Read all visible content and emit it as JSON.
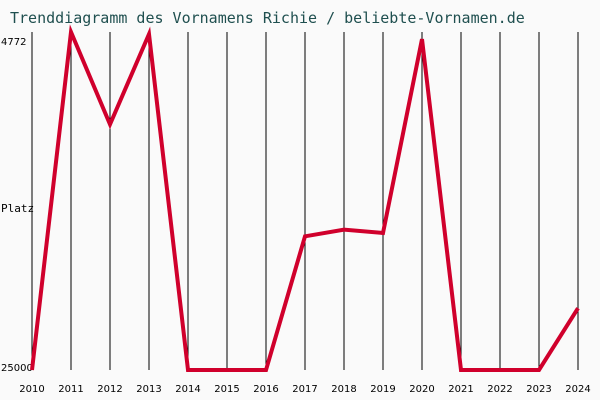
{
  "chart_data": {
    "type": "line",
    "title": "Trenddiagramm des Vornamens Richie / beliebte-Vornamen.de",
    "ylabel": "Platz",
    "xlabel": "",
    "y_axis_inverted": true,
    "ylim": [
      25000,
      4772
    ],
    "y_tick_labels": [
      "4772",
      "25000"
    ],
    "grid": "vertical",
    "x": [
      "2010",
      "2011",
      "2012",
      "2013",
      "2014",
      "2015",
      "2016",
      "2017",
      "2018",
      "2019",
      "2020",
      "2021",
      "2022",
      "2023",
      "2024"
    ],
    "values": [
      25000,
      4772,
      10300,
      4900,
      25000,
      25000,
      25000,
      17000,
      16600,
      16800,
      5200,
      25000,
      25000,
      25000,
      21300
    ],
    "line_color": "#d0002c",
    "grid_color": "#000000"
  }
}
